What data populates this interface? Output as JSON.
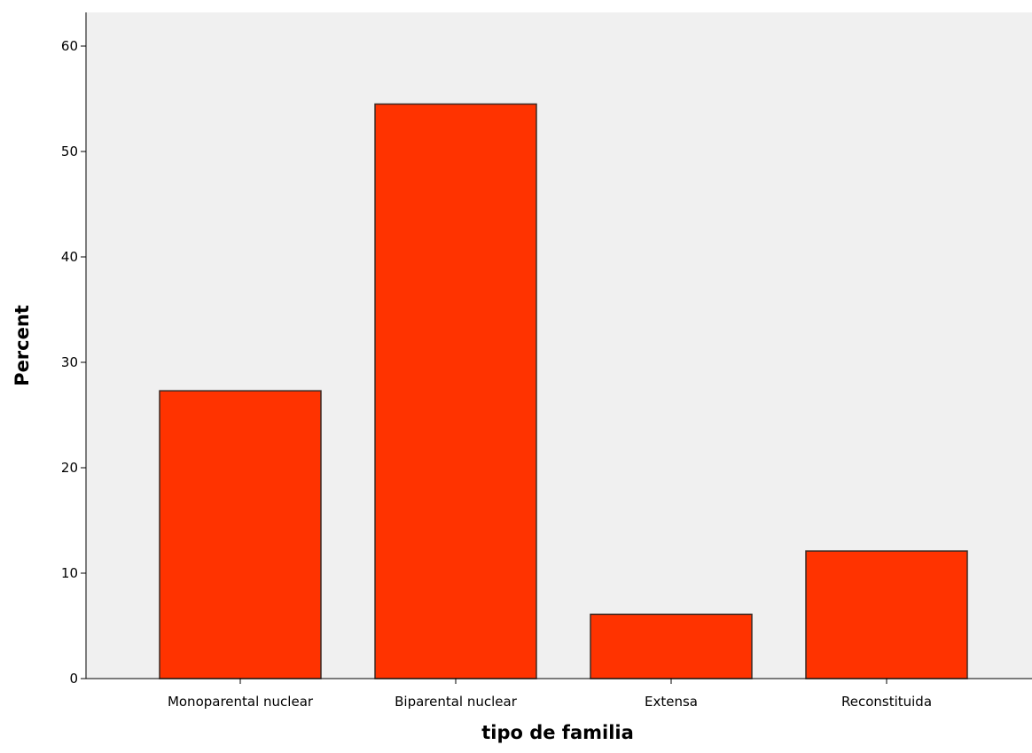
{
  "chart_data": {
    "type": "bar",
    "categories": [
      "Monoparental nuclear",
      "Biparental nuclear",
      "Extensa",
      "Reconstituida"
    ],
    "values": [
      27.3,
      54.5,
      6.1,
      12.1
    ],
    "xlabel": "tipo de familia",
    "ylabel": "Percent",
    "ylim": [
      0,
      60
    ],
    "yticks": [
      0,
      10,
      20,
      30,
      40,
      50,
      60
    ],
    "grid": false,
    "legend": "none",
    "colors": {
      "bar_fill": "#ff3300",
      "bar_stroke": "#3a2a24",
      "plot_background": "#f0f0f0",
      "axis": "#000000"
    }
  }
}
